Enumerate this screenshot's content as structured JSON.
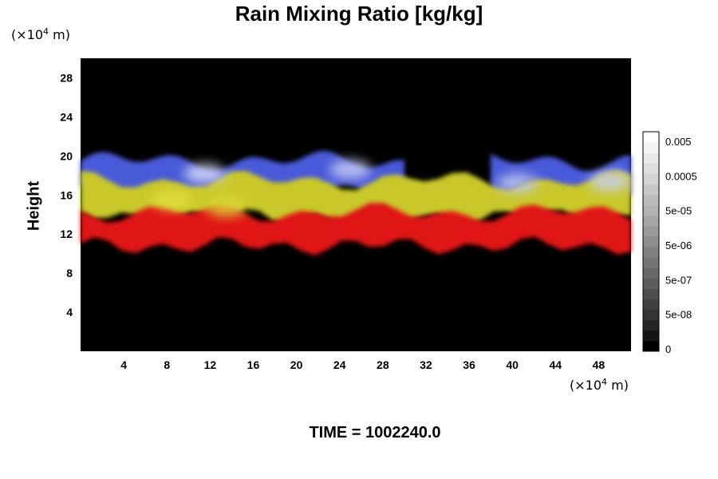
{
  "chart_data": {
    "type": "heatmap",
    "title": "Rain Mixing Ratio [kg/kg]",
    "ylabel": "Height",
    "x_unit": "(×10⁴ m)",
    "y_unit": "(×10⁴ m)",
    "x_ticks": [
      "4",
      "8",
      "12",
      "16",
      "20",
      "24",
      "28",
      "32",
      "36",
      "40",
      "44",
      "48"
    ],
    "y_ticks": [
      "4",
      "8",
      "12",
      "16",
      "20",
      "24",
      "28"
    ],
    "xlim": [
      0,
      51
    ],
    "ylim": [
      0,
      30
    ],
    "background_color": "#000000",
    "colorbar": {
      "ticks": [
        "0",
        "5e-08",
        "5e-07",
        "5e-06",
        "5e-05",
        "0.0005",
        "0.005"
      ],
      "levels": 21,
      "color_low": "#000000",
      "color_high": "#ffffff"
    },
    "bands": [
      {
        "color": "#4a5ad8",
        "y_bottom": 16.5,
        "y_top": 19.5,
        "x_ranges": [
          [
            0,
            30
          ],
          [
            38,
            51
          ]
        ]
      },
      {
        "color": "#c8c82a",
        "y_bottom": 13.8,
        "y_top": 17.5,
        "x_ranges": [
          [
            0,
            51
          ]
        ]
      },
      {
        "color": "#e01414",
        "y_bottom": 10.8,
        "y_top": 14.2,
        "x_ranges": [
          [
            0,
            51
          ]
        ]
      }
    ],
    "bright_patches": [
      {
        "color": "#d8dcf8",
        "x": 11.5,
        "y": 18.2
      },
      {
        "color": "#c8cdf4",
        "x": 25.0,
        "y": 18.6
      },
      {
        "color": "#c0c8f0",
        "x": 40.5,
        "y": 17.2
      },
      {
        "color": "#c8cdf4",
        "x": 49.0,
        "y": 17.4
      },
      {
        "color": "#e0e040",
        "x": 8.5,
        "y": 15.5
      },
      {
        "color": "#dada38",
        "x": 13.5,
        "y": 14.8
      }
    ],
    "time_label": "TIME = 1002240.0"
  }
}
